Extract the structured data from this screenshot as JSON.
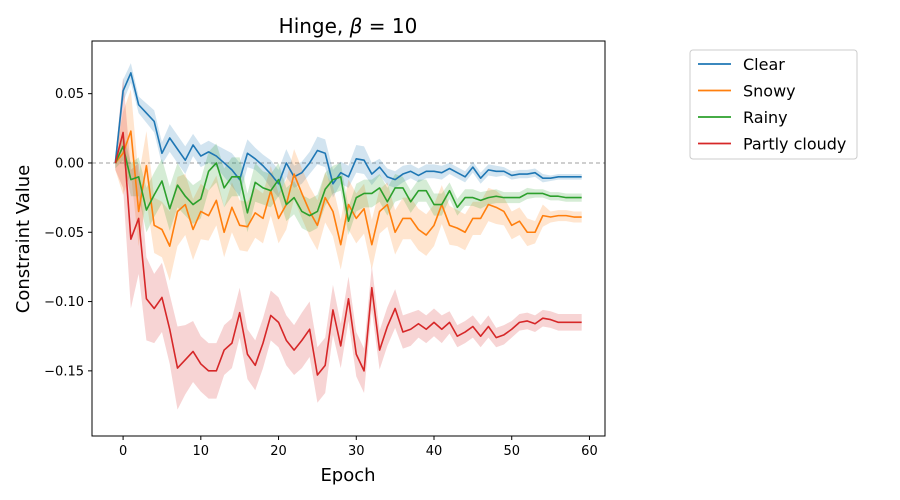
{
  "chart_data": {
    "type": "line",
    "title_prefix": "Hinge, ",
    "title_symbol": "β",
    "title_suffix": " =  10",
    "xlabel": "Epoch",
    "ylabel": "Constraint Value",
    "xlim": [
      -4,
      62
    ],
    "ylim": [
      -0.197,
      0.088
    ],
    "xticks": [
      0,
      10,
      20,
      30,
      40,
      50,
      60
    ],
    "xtick_labels": [
      "0",
      "10",
      "20",
      "30",
      "40",
      "50",
      "60"
    ],
    "yticks": [
      0.05,
      0.0,
      -0.05,
      -0.1,
      -0.15
    ],
    "ytick_labels": [
      "0.05",
      "0.00",
      "−0.05",
      "−0.10",
      "−0.15"
    ],
    "reference_line": {
      "y": 0.0,
      "style": "dashed",
      "color": "#808080"
    },
    "x": [
      -1,
      0,
      1,
      2,
      3,
      4,
      5,
      6,
      7,
      8,
      9,
      10,
      11,
      12,
      13,
      14,
      15,
      16,
      17,
      18,
      19,
      20,
      21,
      22,
      23,
      24,
      25,
      26,
      27,
      28,
      29,
      30,
      31,
      32,
      33,
      34,
      35,
      36,
      37,
      38,
      39,
      40,
      41,
      42,
      43,
      44,
      45,
      46,
      47,
      48,
      49,
      50,
      51,
      52,
      53,
      54,
      55,
      56,
      57,
      58,
      59
    ],
    "legend_position": "outside-right",
    "series": [
      {
        "name": "Clear",
        "color": "#1f77b4",
        "values": [
          0.0,
          0.052,
          0.065,
          0.042,
          0.036,
          0.03,
          0.007,
          0.018,
          0.01,
          0.002,
          0.013,
          0.005,
          0.008,
          0.005,
          0.0,
          -0.005,
          -0.012,
          0.007,
          0.003,
          -0.002,
          -0.008,
          -0.015,
          0.0,
          -0.01,
          -0.007,
          0.0,
          0.009,
          0.007,
          -0.015,
          -0.007,
          -0.01,
          0.003,
          0.002,
          -0.008,
          -0.003,
          -0.01,
          -0.012,
          -0.008,
          -0.006,
          -0.009,
          -0.006,
          -0.006,
          -0.007,
          -0.004,
          -0.007,
          -0.01,
          -0.003,
          -0.011,
          -0.005,
          -0.006,
          -0.006,
          -0.009,
          -0.008,
          -0.008,
          -0.007,
          -0.011,
          -0.011,
          -0.01,
          -0.01,
          -0.01,
          -0.01
        ],
        "band": [
          0.004,
          0.008,
          0.007,
          0.006,
          0.007,
          0.008,
          0.008,
          0.01,
          0.01,
          0.01,
          0.008,
          0.008,
          0.008,
          0.008,
          0.01,
          0.012,
          0.012,
          0.01,
          0.008,
          0.008,
          0.01,
          0.01,
          0.01,
          0.008,
          0.008,
          0.008,
          0.01,
          0.01,
          0.01,
          0.008,
          0.008,
          0.01,
          0.01,
          0.008,
          0.006,
          0.006,
          0.006,
          0.006,
          0.005,
          0.005,
          0.005,
          0.005,
          0.005,
          0.004,
          0.004,
          0.004,
          0.004,
          0.004,
          0.004,
          0.004,
          0.003,
          0.003,
          0.003,
          0.003,
          0.003,
          0.003,
          0.002,
          0.002,
          0.002,
          0.002,
          0.002
        ]
      },
      {
        "name": "Snowy",
        "color": "#ff7f0e",
        "values": [
          0.0,
          0.007,
          0.023,
          -0.035,
          -0.002,
          -0.045,
          -0.048,
          -0.06,
          -0.035,
          -0.03,
          -0.048,
          -0.035,
          -0.038,
          -0.027,
          -0.05,
          -0.032,
          -0.045,
          -0.046,
          -0.036,
          -0.04,
          -0.02,
          -0.04,
          -0.03,
          -0.008,
          -0.022,
          -0.035,
          -0.045,
          -0.025,
          -0.035,
          -0.059,
          -0.03,
          -0.04,
          -0.033,
          -0.059,
          -0.035,
          -0.03,
          -0.05,
          -0.04,
          -0.04,
          -0.048,
          -0.052,
          -0.045,
          -0.03,
          -0.045,
          -0.047,
          -0.05,
          -0.04,
          -0.04,
          -0.03,
          -0.032,
          -0.035,
          -0.045,
          -0.042,
          -0.05,
          -0.05,
          -0.038,
          -0.039,
          -0.038,
          -0.038,
          -0.039,
          -0.039
        ],
        "band": [
          0.005,
          0.03,
          0.03,
          0.025,
          0.025,
          0.02,
          0.02,
          0.025,
          0.025,
          0.022,
          0.022,
          0.02,
          0.018,
          0.018,
          0.018,
          0.018,
          0.018,
          0.018,
          0.018,
          0.018,
          0.018,
          0.018,
          0.018,
          0.018,
          0.018,
          0.018,
          0.018,
          0.018,
          0.018,
          0.018,
          0.018,
          0.018,
          0.018,
          0.018,
          0.016,
          0.016,
          0.016,
          0.015,
          0.015,
          0.015,
          0.015,
          0.015,
          0.014,
          0.014,
          0.013,
          0.013,
          0.012,
          0.012,
          0.012,
          0.012,
          0.01,
          0.01,
          0.01,
          0.01,
          0.008,
          0.008,
          0.004,
          0.004,
          0.004,
          0.004,
          0.004
        ]
      },
      {
        "name": "Rainy",
        "color": "#2ca02c",
        "values": [
          0.0,
          0.012,
          -0.012,
          -0.01,
          -0.034,
          -0.023,
          -0.013,
          -0.033,
          -0.016,
          -0.024,
          -0.03,
          -0.026,
          -0.006,
          0.0,
          -0.018,
          -0.01,
          -0.01,
          -0.036,
          -0.014,
          -0.018,
          -0.02,
          -0.012,
          -0.03,
          -0.025,
          -0.035,
          -0.038,
          -0.035,
          -0.019,
          -0.012,
          -0.01,
          -0.042,
          -0.025,
          -0.022,
          -0.022,
          -0.018,
          -0.028,
          -0.018,
          -0.018,
          -0.028,
          -0.02,
          -0.02,
          -0.03,
          -0.03,
          -0.02,
          -0.032,
          -0.025,
          -0.025,
          -0.027,
          -0.025,
          -0.024,
          -0.025,
          -0.025,
          -0.025,
          -0.022,
          -0.022,
          -0.022,
          -0.024,
          -0.024,
          -0.025,
          -0.025,
          -0.025
        ],
        "band": [
          0.004,
          0.01,
          0.012,
          0.014,
          0.016,
          0.016,
          0.016,
          0.016,
          0.016,
          0.014,
          0.014,
          0.014,
          0.014,
          0.014,
          0.014,
          0.014,
          0.014,
          0.014,
          0.014,
          0.012,
          0.012,
          0.012,
          0.012,
          0.012,
          0.012,
          0.012,
          0.012,
          0.012,
          0.01,
          0.01,
          0.01,
          0.01,
          0.01,
          0.01,
          0.01,
          0.01,
          0.01,
          0.008,
          0.008,
          0.008,
          0.008,
          0.008,
          0.008,
          0.006,
          0.006,
          0.006,
          0.006,
          0.006,
          0.005,
          0.005,
          0.004,
          0.004,
          0.004,
          0.004,
          0.003,
          0.003,
          0.003,
          0.003,
          0.003,
          0.003,
          0.003
        ]
      },
      {
        "name": "Partly cloudy",
        "color": "#d62728",
        "values": [
          0.0,
          0.022,
          -0.055,
          -0.04,
          -0.098,
          -0.105,
          -0.097,
          -0.12,
          -0.148,
          -0.142,
          -0.136,
          -0.145,
          -0.15,
          -0.15,
          -0.135,
          -0.13,
          -0.108,
          -0.138,
          -0.146,
          -0.13,
          -0.11,
          -0.115,
          -0.128,
          -0.135,
          -0.128,
          -0.12,
          -0.153,
          -0.146,
          -0.106,
          -0.132,
          -0.098,
          -0.138,
          -0.15,
          -0.09,
          -0.135,
          -0.118,
          -0.105,
          -0.122,
          -0.12,
          -0.116,
          -0.12,
          -0.115,
          -0.12,
          -0.115,
          -0.125,
          -0.122,
          -0.118,
          -0.125,
          -0.118,
          -0.126,
          -0.124,
          -0.12,
          -0.115,
          -0.114,
          -0.116,
          -0.112,
          -0.113,
          -0.115,
          -0.115,
          -0.115,
          -0.115
        ],
        "band": [
          0.005,
          0.04,
          0.05,
          0.04,
          0.03,
          0.025,
          0.025,
          0.025,
          0.03,
          0.025,
          0.022,
          0.02,
          0.02,
          0.02,
          0.018,
          0.018,
          0.018,
          0.018,
          0.018,
          0.018,
          0.018,
          0.018,
          0.018,
          0.018,
          0.02,
          0.02,
          0.02,
          0.02,
          0.018,
          0.016,
          0.016,
          0.016,
          0.016,
          0.016,
          0.014,
          0.014,
          0.014,
          0.012,
          0.012,
          0.01,
          0.01,
          0.01,
          0.01,
          0.008,
          0.008,
          0.008,
          0.008,
          0.008,
          0.008,
          0.007,
          0.007,
          0.006,
          0.006,
          0.006,
          0.006,
          0.006,
          0.006,
          0.006,
          0.006,
          0.006,
          0.006
        ]
      }
    ]
  }
}
